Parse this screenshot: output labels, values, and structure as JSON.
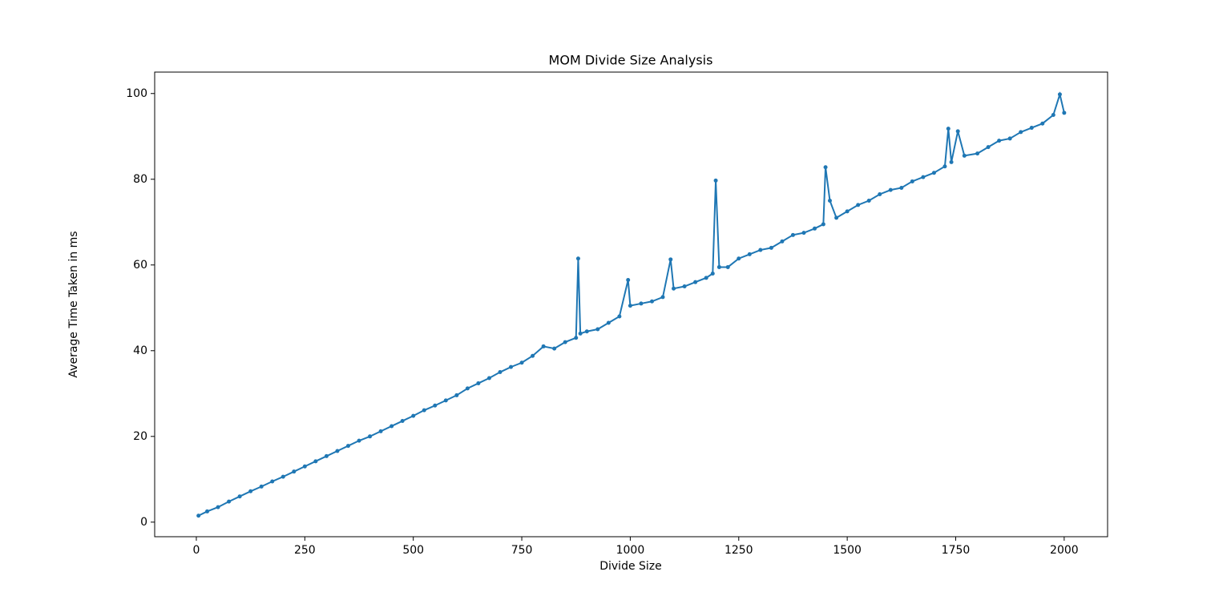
{
  "chart_data": {
    "type": "line",
    "title": "MOM Divide Size Analysis",
    "xlabel": "Divide Size",
    "ylabel": "Average Time Taken in ms",
    "x": [
      5,
      25,
      50,
      75,
      100,
      125,
      150,
      175,
      200,
      225,
      250,
      275,
      300,
      325,
      350,
      375,
      400,
      425,
      450,
      475,
      500,
      525,
      550,
      575,
      600,
      625,
      650,
      675,
      700,
      725,
      750,
      775,
      800,
      825,
      850,
      875,
      880,
      885,
      900,
      925,
      950,
      975,
      995,
      1000,
      1025,
      1050,
      1075,
      1093,
      1100,
      1125,
      1150,
      1175,
      1190,
      1197,
      1205,
      1225,
      1250,
      1275,
      1300,
      1325,
      1350,
      1375,
      1400,
      1425,
      1445,
      1450,
      1460,
      1475,
      1500,
      1525,
      1550,
      1575,
      1600,
      1625,
      1650,
      1675,
      1700,
      1725,
      1733,
      1740,
      1755,
      1770,
      1800,
      1825,
      1850,
      1875,
      1900,
      1925,
      1950,
      1975,
      1990,
      2000
    ],
    "series": [
      {
        "name": "Average Time",
        "color": "#1f77b4",
        "values": [
          1.5,
          2.5,
          3.5,
          4.8,
          6.0,
          7.2,
          8.3,
          9.5,
          10.6,
          11.8,
          13.0,
          14.2,
          15.4,
          16.6,
          17.8,
          19.0,
          20.0,
          21.2,
          22.4,
          23.6,
          24.8,
          26.1,
          27.2,
          28.4,
          29.6,
          31.2,
          32.4,
          33.6,
          35.0,
          36.2,
          37.2,
          38.8,
          41.0,
          40.5,
          42.0,
          43.0,
          61.5,
          44.0,
          44.5,
          45.0,
          46.5,
          48.0,
          56.5,
          50.5,
          51.0,
          51.5,
          52.5,
          61.3,
          54.5,
          55.0,
          56.0,
          57.0,
          58.0,
          79.7,
          59.5,
          59.5,
          61.5,
          62.5,
          63.5,
          64.0,
          65.5,
          67.0,
          67.5,
          68.5,
          69.5,
          82.8,
          75.0,
          71.0,
          72.5,
          74.0,
          75.0,
          76.5,
          77.5,
          78.0,
          79.5,
          80.5,
          81.5,
          83.0,
          91.8,
          84.0,
          91.2,
          85.5,
          86.0,
          87.5,
          89.0,
          89.5,
          91.0,
          92.0,
          93.0,
          95.0,
          99.8,
          95.5
        ]
      }
    ],
    "xlim": [
      -96,
      2100
    ],
    "ylim": [
      -3.4,
      105
    ],
    "xticks": [
      0,
      250,
      500,
      750,
      1000,
      1250,
      1500,
      1750,
      2000
    ],
    "yticks": [
      0,
      20,
      40,
      60,
      80,
      100
    ]
  }
}
